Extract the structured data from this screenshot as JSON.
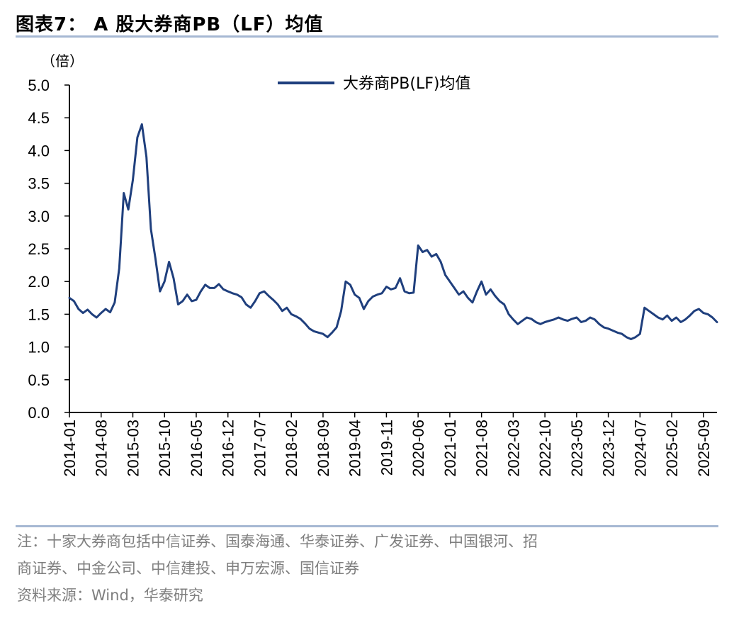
{
  "figure": {
    "title": "图表7：  A 股大券商PB（LF）均值",
    "rule_color": "#a6b8d3"
  },
  "chart_data": {
    "type": "line",
    "unit_label": "（倍）",
    "series": [
      {
        "name": "大券商PB(LF)均值",
        "color": "#1f3f7d",
        "x": [
          "2014-01",
          "2014-02",
          "2014-03",
          "2014-04",
          "2014-05",
          "2014-06",
          "2014-07",
          "2014-08",
          "2014-09",
          "2014-10",
          "2014-11",
          "2014-12",
          "2015-01",
          "2015-02",
          "2015-03",
          "2015-04",
          "2015-05",
          "2015-06",
          "2015-07",
          "2015-08",
          "2015-09",
          "2015-10",
          "2015-11",
          "2015-12",
          "2016-01",
          "2016-02",
          "2016-03",
          "2016-04",
          "2016-05",
          "2016-06",
          "2016-07",
          "2016-08",
          "2016-09",
          "2016-10",
          "2016-11",
          "2016-12",
          "2017-01",
          "2017-02",
          "2017-03",
          "2017-04",
          "2017-05",
          "2017-06",
          "2017-07",
          "2017-08",
          "2017-09",
          "2017-10",
          "2017-11",
          "2017-12",
          "2018-01",
          "2018-02",
          "2018-03",
          "2018-04",
          "2018-05",
          "2018-06",
          "2018-07",
          "2018-08",
          "2018-09",
          "2018-10",
          "2018-11",
          "2018-12",
          "2019-01",
          "2019-02",
          "2019-03",
          "2019-04",
          "2019-05",
          "2019-06",
          "2019-07",
          "2019-08",
          "2019-09",
          "2019-10",
          "2019-11",
          "2019-12",
          "2020-01",
          "2020-02",
          "2020-03",
          "2020-04",
          "2020-05",
          "2020-06",
          "2020-07",
          "2020-08",
          "2020-09",
          "2020-10",
          "2020-11",
          "2020-12",
          "2021-01",
          "2021-02",
          "2021-03",
          "2021-04",
          "2021-05",
          "2021-06",
          "2021-07",
          "2021-08",
          "2021-09",
          "2021-10",
          "2021-11",
          "2021-12",
          "2022-01",
          "2022-02",
          "2022-03",
          "2022-04",
          "2022-05",
          "2022-06",
          "2022-07",
          "2022-08",
          "2022-09",
          "2022-10",
          "2022-11",
          "2022-12",
          "2023-01",
          "2023-02",
          "2023-03",
          "2023-04",
          "2023-05",
          "2023-06",
          "2023-07",
          "2023-08",
          "2023-09",
          "2023-10",
          "2023-11",
          "2023-12",
          "2024-01",
          "2024-02",
          "2024-03",
          "2024-04",
          "2024-05",
          "2024-06",
          "2024-07",
          "2024-08",
          "2024-09",
          "2024-10",
          "2024-11",
          "2024-12",
          "2025-01",
          "2025-02",
          "2025-03",
          "2025-04",
          "2025-05",
          "2025-06",
          "2025-07",
          "2025-08",
          "2025-09",
          "2025-10",
          "2025-11",
          "2025-12"
        ],
        "values": [
          1.75,
          1.7,
          1.58,
          1.52,
          1.57,
          1.5,
          1.45,
          1.52,
          1.58,
          1.53,
          1.68,
          2.2,
          3.35,
          3.1,
          3.55,
          4.2,
          4.4,
          3.9,
          2.8,
          2.35,
          1.85,
          2.0,
          2.3,
          2.05,
          1.65,
          1.7,
          1.8,
          1.7,
          1.72,
          1.85,
          1.95,
          1.9,
          1.9,
          1.96,
          1.88,
          1.85,
          1.82,
          1.8,
          1.76,
          1.65,
          1.6,
          1.7,
          1.82,
          1.85,
          1.78,
          1.72,
          1.65,
          1.55,
          1.6,
          1.5,
          1.47,
          1.43,
          1.36,
          1.28,
          1.24,
          1.22,
          1.2,
          1.15,
          1.22,
          1.3,
          1.55,
          2.0,
          1.95,
          1.8,
          1.75,
          1.58,
          1.7,
          1.77,
          1.8,
          1.82,
          1.92,
          1.88,
          1.9,
          2.05,
          1.85,
          1.82,
          1.83,
          2.55,
          2.45,
          2.48,
          2.38,
          2.42,
          2.3,
          2.1,
          2.0,
          1.9,
          1.8,
          1.85,
          1.75,
          1.68,
          1.85,
          2.0,
          1.8,
          1.88,
          1.78,
          1.7,
          1.65,
          1.5,
          1.42,
          1.35,
          1.4,
          1.45,
          1.43,
          1.38,
          1.35,
          1.38,
          1.4,
          1.42,
          1.45,
          1.42,
          1.4,
          1.43,
          1.45,
          1.38,
          1.4,
          1.45,
          1.42,
          1.35,
          1.3,
          1.28,
          1.25,
          1.22,
          1.2,
          1.15,
          1.12,
          1.15,
          1.2,
          1.6,
          1.55,
          1.5,
          1.45,
          1.42,
          1.48,
          1.4,
          1.45,
          1.38,
          1.42,
          1.48,
          1.55,
          1.58,
          1.52,
          1.5,
          1.45,
          1.38
        ]
      }
    ],
    "yticks": [
      "0.0",
      "0.5",
      "1.0",
      "1.5",
      "2.0",
      "2.5",
      "3.0",
      "3.5",
      "4.0",
      "4.5",
      "5.0"
    ],
    "ylim": [
      0,
      5
    ],
    "xticks": [
      "2014-01",
      "2014-08",
      "2015-03",
      "2015-10",
      "2016-05",
      "2016-12",
      "2017-07",
      "2018-02",
      "2018-09",
      "2019-04",
      "2019-11",
      "2020-06",
      "2021-01",
      "2021-08",
      "2022-03",
      "2022-10",
      "2023-05",
      "2023-12",
      "2024-07",
      "2025-02",
      "2025-09"
    ],
    "legend": "top-center",
    "grid": false
  },
  "footnotes": {
    "note_line1": "注：十家大券商包括中信证券、国泰海通、华泰证券、广发证券、中国银河、招",
    "note_line2": "商证券、中金公司、中信建投、申万宏源、国信证券",
    "source": "资料来源：Wind，华泰研究"
  }
}
